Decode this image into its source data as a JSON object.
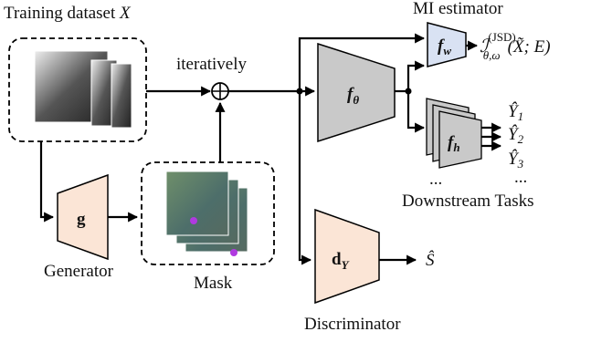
{
  "labels": {
    "dataset": "Training dataset",
    "dataset_var": "X",
    "iteratively": "iteratively",
    "mi_estimator": "MI estimator",
    "downstream": "Downstream Tasks",
    "generator": "Generator",
    "mask": "Mask",
    "discriminator": "Discriminator"
  },
  "blocks": {
    "f_theta": {
      "symbol": "f",
      "sub": "θ"
    },
    "f_w": {
      "symbol": "f",
      "sub": "w"
    },
    "f_h": {
      "symbol": "f",
      "sub": "h"
    },
    "g": {
      "symbol": "g"
    },
    "d_y": {
      "symbol": "d",
      "sub": "Y"
    }
  },
  "mi_formula": {
    "symbol": "ℐ",
    "sup": "(JSD)",
    "sub": "θ,ω",
    "args": "(X̃; E)"
  },
  "outputs": {
    "y1": {
      "symbol": "Ŷ",
      "sub": "1"
    },
    "y2": {
      "symbol": "Ŷ",
      "sub": "2"
    },
    "y3": {
      "symbol": "Ŷ",
      "sub": "3"
    },
    "ellipsis_left": "...",
    "ellipsis_right": "...",
    "s": "Ŝ"
  }
}
